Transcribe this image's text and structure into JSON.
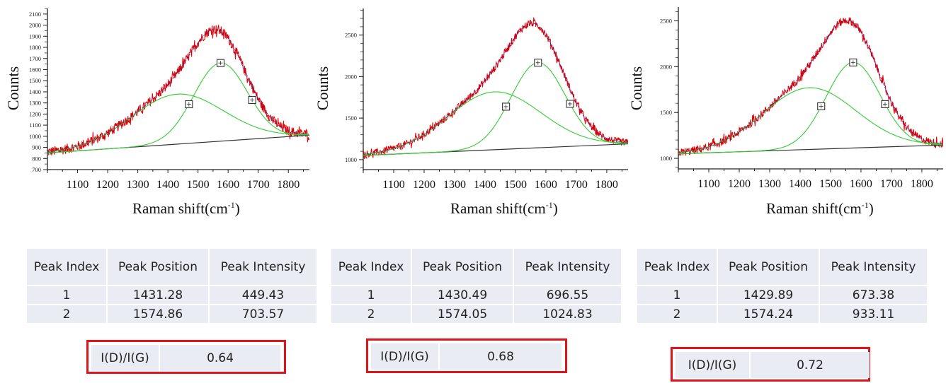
{
  "chart_data": [
    {
      "type": "line",
      "title": "",
      "xlabel": "Raman shift(cm",
      "xlabel_sup": "-1",
      "xlabel_close": ")",
      "ylabel": "Counts",
      "xlim": [
        1000,
        1870
      ],
      "ylim": [
        700,
        2150
      ],
      "xticks": [
        1100,
        1200,
        1300,
        1400,
        1500,
        1600,
        1700,
        1800
      ],
      "yticks": [
        700,
        800,
        900,
        1000,
        1100,
        1200,
        1300,
        1400,
        1500,
        1600,
        1700,
        1800,
        1900,
        2000,
        2100
      ],
      "baseline": {
        "start": [
          1000,
          850
        ],
        "end": [
          1870,
          1010
        ]
      },
      "peaks": [
        {
          "index": 1,
          "position": 1431.28,
          "intensity": 449.43,
          "fwhm": 360
        },
        {
          "index": 2,
          "position": 1574.86,
          "intensity": 703.57,
          "fwhm": 210
        }
      ],
      "noise": 45,
      "series": [
        {
          "name": "measured spectrum",
          "color": "#e00000"
        },
        {
          "name": "cumulative fit",
          "color": "#2a2ad0"
        },
        {
          "name": "fitted peaks",
          "color": "#33cc33"
        },
        {
          "name": "baseline",
          "color": "#333333"
        }
      ]
    },
    {
      "type": "line",
      "title": "",
      "xlabel": "Raman shift(cm",
      "xlabel_sup": "-1",
      "xlabel_close": ")",
      "ylabel": "Counts",
      "xlim": [
        1000,
        1870
      ],
      "ylim": [
        880,
        2820
      ],
      "xticks": [
        1100,
        1200,
        1300,
        1400,
        1500,
        1600,
        1700,
        1800
      ],
      "yticks": [
        1000,
        1500,
        2000,
        2500
      ],
      "baseline": {
        "start": [
          1000,
          1050
        ],
        "end": [
          1870,
          1190
        ]
      },
      "peaks": [
        {
          "index": 1,
          "position": 1430.49,
          "intensity": 696.55,
          "fwhm": 360
        },
        {
          "index": 2,
          "position": 1574.05,
          "intensity": 1024.83,
          "fwhm": 210
        }
      ],
      "noise": 45,
      "series": [
        {
          "name": "measured spectrum",
          "color": "#e00000"
        },
        {
          "name": "cumulative fit",
          "color": "#2a2ad0"
        },
        {
          "name": "fitted peaks",
          "color": "#33cc33"
        },
        {
          "name": "baseline",
          "color": "#333333"
        }
      ]
    },
    {
      "type": "line",
      "title": "",
      "xlabel": "Raman shift(cm",
      "xlabel_sup": "-1",
      "xlabel_close": ")",
      "ylabel": "Counts",
      "xlim": [
        1000,
        1870
      ],
      "ylim": [
        885,
        2650
      ],
      "xticks": [
        1100,
        1200,
        1300,
        1400,
        1500,
        1600,
        1700,
        1800
      ],
      "yticks": [
        1000,
        1500,
        2000,
        2500
      ],
      "baseline": {
        "start": [
          1000,
          1050
        ],
        "end": [
          1870,
          1145
        ]
      },
      "peaks": [
        {
          "index": 1,
          "position": 1429.89,
          "intensity": 673.38,
          "fwhm": 360
        },
        {
          "index": 2,
          "position": 1574.24,
          "intensity": 933.11,
          "fwhm": 210
        }
      ],
      "noise": 45,
      "series": [
        {
          "name": "measured spectrum",
          "color": "#e00000"
        },
        {
          "name": "cumulative fit",
          "color": "#2a2ad0"
        },
        {
          "name": "fitted peaks",
          "color": "#33cc33"
        },
        {
          "name": "baseline",
          "color": "#333333"
        }
      ]
    }
  ],
  "tables": [
    {
      "headers": [
        "Peak Index",
        "Peak Position",
        "Peak Intensity"
      ],
      "rows": [
        [
          "1",
          "1431.28",
          "449.43"
        ],
        [
          "2",
          "1574.86",
          "703.57"
        ]
      ],
      "ratio_label": "I(D)/I(G)",
      "ratio_value": "0.64"
    },
    {
      "headers": [
        "Peak Index",
        "Peak Position",
        "Peak Intensity"
      ],
      "rows": [
        [
          "1",
          "1430.49",
          "696.55"
        ],
        [
          "2",
          "1574.05",
          "1024.83"
        ]
      ],
      "ratio_label": "I(D)/I(G)",
      "ratio_value": "0.68"
    },
    {
      "headers": [
        "Peak Index",
        "Peak Position",
        "Peak Intensity"
      ],
      "rows": [
        [
          "1",
          "1429.89",
          "673.38"
        ],
        [
          "2",
          "1574.24",
          "933.11"
        ]
      ],
      "ratio_label": "I(D)/I(G)",
      "ratio_value": "0.72"
    }
  ],
  "colors": {
    "highlight_box": "#e0151b",
    "table_cell": "#e9edf3"
  }
}
